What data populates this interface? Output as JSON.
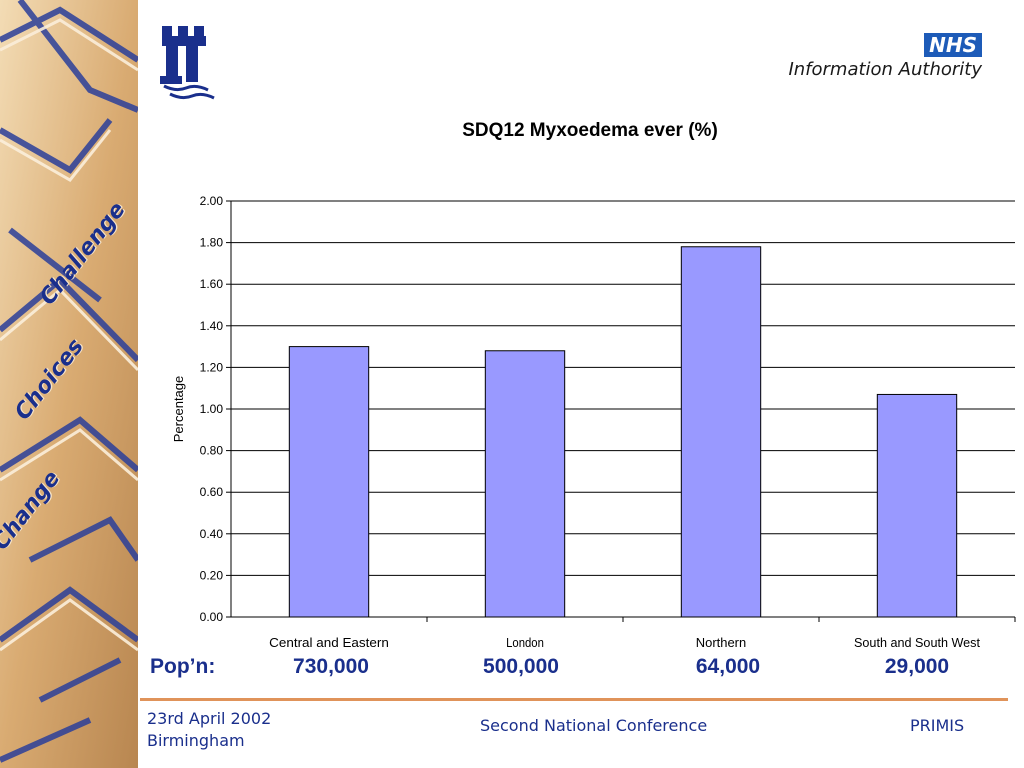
{
  "sidebar": {
    "words": [
      "Challenge",
      "Choices",
      "Change"
    ]
  },
  "header": {
    "nhs_badge": "NHS",
    "nhs_authority": "Information Authority"
  },
  "chart_data": {
    "type": "bar",
    "title": "SDQ12 Myxoedema ever (%)",
    "ylabel": "Percentage",
    "xlabel": "",
    "categories": [
      "Central and Eastern",
      "London",
      "Northern",
      "South and South West"
    ],
    "values": [
      1.3,
      1.28,
      1.78,
      1.07
    ],
    "ylim": [
      0,
      2.0
    ],
    "yticks": [
      "0.00",
      "0.20",
      "0.40",
      "0.60",
      "0.80",
      "1.00",
      "1.20",
      "1.40",
      "1.60",
      "1.80",
      "2.00"
    ],
    "grid": true,
    "bar_color": "#9999ff"
  },
  "population": {
    "label": "Pop’n:",
    "values": [
      "730,000",
      "500,000",
      "64,000",
      "29,000"
    ]
  },
  "footer": {
    "date_line1": "23rd April 2002",
    "date_line2": "Birmingham",
    "conference": "Second National Conference",
    "org": "PRIMIS"
  },
  "colors": {
    "accent_blue": "#1a2f8c",
    "footer_rule": "#e0935a"
  }
}
